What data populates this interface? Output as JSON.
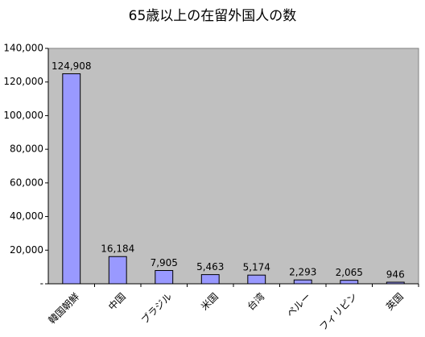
{
  "chart_data": {
    "type": "bar",
    "title": "65歳以上の在留外国人の数",
    "categories": [
      "韓国朝鮮",
      "中国",
      "ブラジル",
      "米国",
      "台湾",
      "ペルー",
      "フィリピン",
      "英国"
    ],
    "values": [
      124908,
      16184,
      7905,
      5463,
      5174,
      2293,
      2065,
      946
    ],
    "value_labels": [
      "124,908",
      "16,184",
      "7,905",
      "5,463",
      "5,174",
      "2,293",
      "2,065",
      "946"
    ],
    "color": "#9999ff",
    "plot_background": "#c0c0c0",
    "ylim": [
      0,
      140000
    ],
    "yticks": [
      {
        "value": 0,
        "label": "-"
      },
      {
        "value": 20000,
        "label": "20,000"
      },
      {
        "value": 40000,
        "label": "40,000"
      },
      {
        "value": 60000,
        "label": "60,000"
      },
      {
        "value": 80000,
        "label": "80,000"
      },
      {
        "value": 100000,
        "label": "100,000"
      },
      {
        "value": 120000,
        "label": "120,000"
      },
      {
        "value": 140000,
        "label": "140,000"
      }
    ],
    "grid": false
  }
}
